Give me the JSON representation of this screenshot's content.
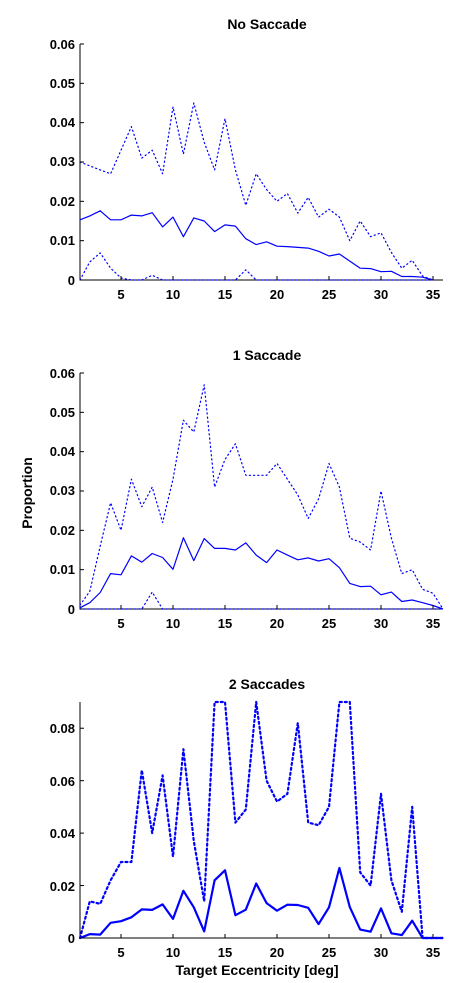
{
  "chart_data": [
    {
      "type": "line",
      "title": "No Saccade",
      "xlabel": "",
      "ylabel": "",
      "xlim": [
        1,
        36
      ],
      "ylim": [
        0,
        0.06
      ],
      "xticks": [
        "5",
        "10",
        "15",
        "20",
        "25",
        "30",
        "35"
      ],
      "yticks": [
        "0",
        "0.01",
        "0.02",
        "0.03",
        "0.04",
        "0.05",
        "0.06"
      ],
      "grid": false,
      "color": "#0000ff",
      "x": [
        1,
        2,
        3,
        4,
        5,
        6,
        7,
        8,
        9,
        10,
        11,
        12,
        13,
        14,
        15,
        16,
        17,
        18,
        19,
        20,
        21,
        22,
        23,
        24,
        25,
        26,
        27,
        28,
        29,
        30,
        31,
        32,
        33,
        34,
        35,
        36
      ],
      "series": [
        {
          "style": "solid",
          "width": 1.2,
          "values": [
            0.0153,
            0.0163,
            0.0176,
            0.0153,
            0.0153,
            0.0165,
            0.0163,
            0.0171,
            0.0135,
            0.016,
            0.011,
            0.0158,
            0.015,
            0.0123,
            0.014,
            0.0137,
            0.0105,
            0.009,
            0.0097,
            0.0086,
            0.0085,
            0.0083,
            0.0081,
            0.0073,
            0.0061,
            0.0066,
            0.0048,
            0.003,
            0.0029,
            0.0021,
            0.0022,
            0.0009,
            0.0009,
            0.0007,
            0.0,
            null
          ]
        },
        {
          "style": "dotted",
          "width": 1.2,
          "values": [
            0.03,
            0.029,
            0.028,
            0.027,
            0.033,
            0.039,
            0.031,
            0.033,
            0.027,
            0.044,
            0.032,
            0.045,
            0.035,
            0.028,
            0.041,
            0.028,
            0.019,
            0.027,
            0.023,
            0.02,
            0.022,
            0.017,
            0.021,
            0.016,
            0.018,
            0.016,
            0.01,
            0.015,
            0.011,
            0.012,
            0.007,
            0.003,
            0.005,
            0.001,
            0.0,
            null
          ]
        },
        {
          "style": "dotted",
          "width": 1.2,
          "values": [
            0.0,
            0.0046,
            0.0069,
            0.003,
            0.0005,
            0.0,
            0.0,
            0.0012,
            0.0,
            0.0,
            0.0,
            0.0,
            0.0,
            0.0,
            0.0,
            0.0,
            0.0026,
            0.0,
            0.0,
            0.0,
            0.0,
            0.0,
            0.0,
            0.0,
            0.0,
            0.0,
            0.0,
            0.0,
            0.0,
            0.0,
            0.0,
            0.0,
            0.0,
            0.0,
            0.0,
            null
          ]
        }
      ]
    },
    {
      "type": "line",
      "title": "1 Saccade",
      "xlabel": "",
      "ylabel": "Proportion",
      "xlim": [
        1,
        36
      ],
      "ylim": [
        0,
        0.06
      ],
      "xticks": [
        "5",
        "10",
        "15",
        "20",
        "25",
        "30",
        "35"
      ],
      "yticks": [
        "0",
        "0.01",
        "0.02",
        "0.03",
        "0.04",
        "0.05",
        "0.06"
      ],
      "grid": false,
      "color": "#0000ff",
      "x": [
        1,
        2,
        3,
        4,
        5,
        6,
        7,
        8,
        9,
        10,
        11,
        12,
        13,
        14,
        15,
        16,
        17,
        18,
        19,
        20,
        21,
        22,
        23,
        24,
        25,
        26,
        27,
        28,
        29,
        30,
        31,
        32,
        33,
        34,
        35,
        36
      ],
      "series": [
        {
          "style": "solid",
          "width": 1.2,
          "values": [
            0.0003,
            0.0016,
            0.0042,
            0.009,
            0.0087,
            0.0135,
            0.0119,
            0.0141,
            0.0131,
            0.0101,
            0.0181,
            0.0123,
            0.0179,
            0.0154,
            0.0154,
            0.015,
            0.0168,
            0.0137,
            0.0118,
            0.015,
            0.0137,
            0.0125,
            0.013,
            0.0122,
            0.0128,
            0.0105,
            0.0065,
            0.0057,
            0.0058,
            0.0036,
            0.0043,
            0.0019,
            0.0023,
            0.0016,
            0.0009,
            0.0
          ]
        },
        {
          "style": "dotted",
          "width": 1.2,
          "values": [
            0.001,
            0.0045,
            0.016,
            0.027,
            0.02,
            0.033,
            0.026,
            0.031,
            0.022,
            0.033,
            0.048,
            0.045,
            0.057,
            0.031,
            0.038,
            0.042,
            0.034,
            0.034,
            0.034,
            0.037,
            0.033,
            0.029,
            0.023,
            0.028,
            0.037,
            0.031,
            0.018,
            0.017,
            0.015,
            0.03,
            0.018,
            0.009,
            0.01,
            0.005,
            0.004,
            0.0
          ]
        },
        {
          "style": "dotted",
          "width": 1.2,
          "values": [
            0.0,
            0.0,
            0.0,
            0.0,
            0.0,
            0.0,
            0.0,
            0.0043,
            0.0,
            0.0,
            0.0,
            0.0,
            0.0,
            0.0,
            0.0,
            0.0,
            0.0,
            0.0,
            0.0,
            0.0,
            0.0,
            0.0,
            0.0,
            0.0,
            0.0,
            0.0,
            0.0,
            0.0,
            0.0,
            0.0,
            0.0,
            0.0,
            0.0,
            0.0,
            0.0,
            0.0
          ]
        }
      ]
    },
    {
      "type": "line",
      "title": "2 Saccades",
      "xlabel": "Target Eccentricity [deg]",
      "ylabel": "",
      "xlim": [
        1,
        36
      ],
      "ylim": [
        0,
        0.09
      ],
      "xticks": [
        "5",
        "10",
        "15",
        "20",
        "25",
        "30",
        "35"
      ],
      "yticks": [
        "0",
        "0.02",
        "0.04",
        "0.06",
        "0.08"
      ],
      "grid": false,
      "color": "#0000ff",
      "x": [
        1,
        2,
        3,
        4,
        5,
        6,
        7,
        8,
        9,
        10,
        11,
        12,
        13,
        14,
        15,
        16,
        17,
        18,
        19,
        20,
        21,
        22,
        23,
        24,
        25,
        26,
        27,
        28,
        29,
        30,
        31,
        32,
        33,
        34,
        35,
        36
      ],
      "series": [
        {
          "style": "solid",
          "width": 2.2,
          "values": [
            0.0,
            0.0015,
            0.0013,
            0.0058,
            0.0064,
            0.0079,
            0.0109,
            0.0107,
            0.0128,
            0.0073,
            0.018,
            0.0117,
            0.0025,
            0.022,
            0.0258,
            0.0087,
            0.0108,
            0.0208,
            0.0133,
            0.0104,
            0.0127,
            0.0126,
            0.0115,
            0.0053,
            0.0117,
            0.0267,
            0.0118,
            0.0032,
            0.0024,
            0.0113,
            0.0018,
            0.0011,
            0.0066,
            0.0,
            0.0,
            0.0
          ]
        },
        {
          "style": "dotted",
          "width": 2.2,
          "values": [
            0.0,
            0.014,
            0.013,
            0.022,
            0.029,
            0.029,
            0.064,
            0.04,
            0.062,
            0.031,
            0.072,
            0.037,
            0.014,
            0.09,
            0.09,
            0.044,
            0.049,
            0.09,
            0.06,
            0.052,
            0.055,
            0.082,
            0.044,
            0.043,
            0.05,
            0.09,
            0.09,
            0.025,
            0.02,
            0.055,
            0.022,
            0.01,
            0.05,
            0.0,
            0.0,
            0.0
          ]
        }
      ]
    }
  ]
}
